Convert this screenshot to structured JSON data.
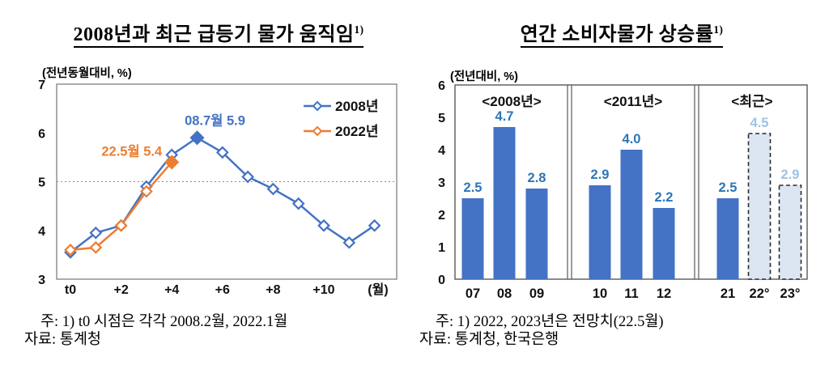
{
  "left_chart": {
    "title": "2008년과 최근 급등기 물가 움직임",
    "title_sup": "1)",
    "note": "주: 1) t0 시점은 각각 2008.2월, 2022.1월",
    "source": "자료: 통계청"
  },
  "right_chart": {
    "title": "연간 소비자물가 상승률",
    "title_sup": "1)",
    "note": "주: 1) 2022, 2023년은 전망치(22.5월)",
    "source": "자료: 통계청, 한국은행"
  },
  "chart_data": [
    {
      "type": "line",
      "title": "2008년과 최근 급등기 물가 움직임1)",
      "unit_label": "(전년동월대비, %)",
      "x_axis_unit": "(월)",
      "x_tick_labels": [
        "t0",
        "+2",
        "+4",
        "+6",
        "+8",
        "+10"
      ],
      "x_months_from_t0": [
        0,
        1,
        2,
        3,
        4,
        5,
        6,
        7,
        8,
        9,
        10,
        11,
        12
      ],
      "ylim": [
        3,
        7
      ],
      "yticks": [
        7,
        6,
        5,
        4,
        3
      ],
      "reference_line_y": 5,
      "grid": "dotted line at y=5 only",
      "legend_position": "top-right-inside",
      "series": [
        {
          "name": "2008년",
          "color": "#4472C4",
          "values": [
            3.55,
            3.95,
            4.1,
            4.9,
            5.55,
            5.9,
            5.6,
            5.1,
            4.85,
            4.55,
            4.1,
            3.75,
            4.1
          ],
          "peak_index": 5,
          "peak_label": "08.7월 5.9"
        },
        {
          "name": "2022년",
          "color": "#ED7D31",
          "values": [
            3.6,
            3.65,
            4.1,
            4.8,
            5.4
          ],
          "peak_index": 4,
          "peak_label": "22.5월 5.4"
        }
      ]
    },
    {
      "type": "bar",
      "title": "연간 소비자물가 상승률1)",
      "unit_label": "(전년대비, %)",
      "ylim": [
        0,
        6
      ],
      "yticks": [
        6,
        5,
        4,
        3,
        2,
        1,
        0
      ],
      "bar_color": "#4472C4",
      "value_label_color": "#2E75B6",
      "forecast_fill": "#DCE6F3",
      "forecast_border": "#2B2B2B",
      "forecast_label_color": "#9DC3E6",
      "panels": [
        {
          "header": "<2008년>",
          "categories": [
            "07",
            "08",
            "09"
          ],
          "values": [
            2.5,
            4.7,
            2.8
          ],
          "labels": [
            "2.5",
            "4.7",
            "2.8"
          ],
          "forecast": [
            false,
            false,
            false
          ]
        },
        {
          "header": "<2011년>",
          "categories": [
            "10",
            "11",
            "12"
          ],
          "values": [
            2.9,
            4.0,
            2.2
          ],
          "labels": [
            "2.9",
            "4.0",
            "2.2"
          ],
          "forecast": [
            false,
            false,
            false
          ]
        },
        {
          "header": "<최근>",
          "categories": [
            "21",
            "22°",
            "23°"
          ],
          "values": [
            2.5,
            4.5,
            2.9
          ],
          "labels": [
            "2.5",
            "4.5",
            "2.9"
          ],
          "forecast": [
            false,
            true,
            true
          ]
        }
      ]
    }
  ]
}
